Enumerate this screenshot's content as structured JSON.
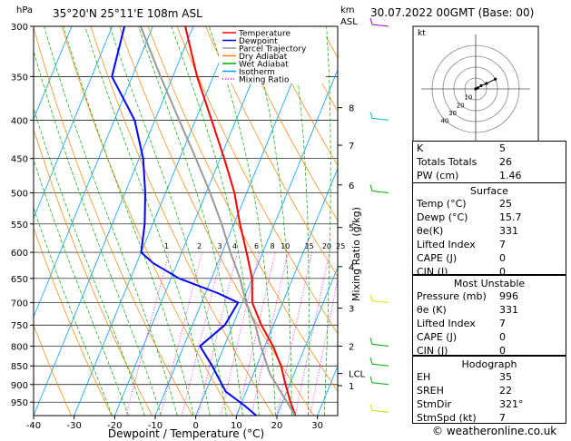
{
  "header": {
    "hpa_label": "hPa",
    "location": "35°20'N  25°11'E  108m  ASL",
    "km_label": "km",
    "asl_label": "ASL",
    "datetime": "30.07.2022  00GMT  (Base: 00)"
  },
  "footer": {
    "copyright": "© weatheronline.co.uk"
  },
  "colors": {
    "temperature": "#ff0000",
    "dewpoint": "#0000ff",
    "parcel": "#999999",
    "dry_adiabat": "#ff8000",
    "wet_adiabat": "#00b000",
    "isotherm": "#00a0ff",
    "mixing_ratio": "#ff00ff",
    "wind": "#00bbbb"
  },
  "chart_data": {
    "type": "line",
    "title": "",
    "xlabel": "Dewpoint / Temperature (°C)",
    "ylabel": "hPa",
    "y_scale": "log",
    "y_reversed": true,
    "skew": "skew-T",
    "xlim": [
      -40,
      35
    ],
    "ylim": [
      990,
      300
    ],
    "x_ticks": [
      "-40",
      "-30",
      "-20",
      "-10",
      "0",
      "10",
      "20",
      "30"
    ],
    "pressure_ticks": [
      "300",
      "350",
      "400",
      "450",
      "500",
      "550",
      "600",
      "650",
      "700",
      "750",
      "800",
      "850",
      "900",
      "950"
    ],
    "km_ticks": [
      {
        "p": 385,
        "label": "8"
      },
      {
        "p": 432,
        "label": "7"
      },
      {
        "p": 488,
        "label": "6"
      },
      {
        "p": 556,
        "label": "5"
      },
      {
        "p": 627,
        "label": "4"
      },
      {
        "p": 712,
        "label": "3"
      },
      {
        "p": 800,
        "label": "2"
      },
      {
        "p": 870,
        "label": "LCL"
      },
      {
        "p": 903,
        "label": "1"
      }
    ],
    "mixing_ratio_axis_label": "Mixing Ratio (g/kg)",
    "mixing_ratio_labels": [
      "1",
      "2",
      "3",
      "4",
      "6",
      "8",
      "10",
      "15",
      "20",
      "25"
    ],
    "grid": true,
    "legend_position": "top-center",
    "legend": [
      "Temperature",
      "Dewpoint",
      "Parcel Trajectory",
      "Dry Adiabat",
      "Wet Adiabat",
      "Isotherm",
      "Mixing Ratio"
    ],
    "series": [
      {
        "name": "Temperature",
        "points": [
          [
            996,
            25
          ],
          [
            950,
            22
          ],
          [
            900,
            19
          ],
          [
            850,
            16
          ],
          [
            800,
            12
          ],
          [
            750,
            7
          ],
          [
            700,
            2.5
          ],
          [
            650,
            0
          ],
          [
            600,
            -4
          ],
          [
            550,
            -8.5
          ],
          [
            500,
            -13
          ],
          [
            450,
            -19
          ],
          [
            400,
            -26
          ],
          [
            350,
            -34
          ],
          [
            300,
            -42
          ]
        ]
      },
      {
        "name": "Dewpoint",
        "points": [
          [
            996,
            15.7
          ],
          [
            960,
            11
          ],
          [
            920,
            5
          ],
          [
            850,
            -1
          ],
          [
            800,
            -6
          ],
          [
            750,
            -2
          ],
          [
            700,
            -1
          ],
          [
            680,
            -7
          ],
          [
            650,
            -18
          ],
          [
            620,
            -26
          ],
          [
            600,
            -30
          ],
          [
            550,
            -32
          ],
          [
            500,
            -35
          ],
          [
            450,
            -39
          ],
          [
            400,
            -45
          ],
          [
            350,
            -55
          ],
          [
            300,
            -57
          ]
        ]
      },
      {
        "name": "Parcel Trajectory",
        "points": [
          [
            996,
            25
          ],
          [
            870,
            14
          ],
          [
            800,
            9
          ],
          [
            750,
            5.5
          ],
          [
            700,
            1
          ],
          [
            650,
            -3
          ],
          [
            600,
            -8
          ],
          [
            550,
            -13
          ],
          [
            500,
            -19
          ],
          [
            450,
            -26
          ],
          [
            400,
            -34
          ],
          [
            350,
            -43
          ],
          [
            300,
            -53
          ]
        ]
      }
    ]
  },
  "hodograph": {
    "unit_label": "kt",
    "ring_labels": [
      "10",
      "20",
      "30",
      "40"
    ],
    "points": [
      [
        0,
        0
      ],
      [
        2,
        1
      ],
      [
        5,
        3
      ],
      [
        10,
        5
      ],
      [
        18,
        9
      ]
    ]
  },
  "indices": {
    "rows": [
      {
        "label": "K",
        "value": "5"
      },
      {
        "label": "Totals Totals",
        "value": "26"
      },
      {
        "label": "PW (cm)",
        "value": "1.46"
      }
    ]
  },
  "surface": {
    "title": "Surface",
    "rows": [
      {
        "label": "Temp (°C)",
        "value": "25"
      },
      {
        "label": "Dewp (°C)",
        "value": "15.7"
      },
      {
        "label": "θe(K)",
        "value": "331"
      },
      {
        "label": "Lifted Index",
        "value": "7"
      },
      {
        "label": "CAPE (J)",
        "value": "0"
      },
      {
        "label": "CIN (J)",
        "value": "0"
      }
    ]
  },
  "most_unstable": {
    "title": "Most Unstable",
    "rows": [
      {
        "label": "Pressure (mb)",
        "value": "996"
      },
      {
        "label": "θe (K)",
        "value": "331"
      },
      {
        "label": "Lifted Index",
        "value": "7"
      },
      {
        "label": "CAPE (J)",
        "value": "0"
      },
      {
        "label": "CIN (J)",
        "value": "0"
      }
    ]
  },
  "hodograph_box": {
    "title": "Hodograph",
    "rows": [
      {
        "label": "EH",
        "value": "35"
      },
      {
        "label": "SREH",
        "value": "22"
      },
      {
        "label": "StmDir",
        "value": "321°"
      },
      {
        "label": "StmSpd (kt)",
        "value": "7"
      }
    ]
  }
}
